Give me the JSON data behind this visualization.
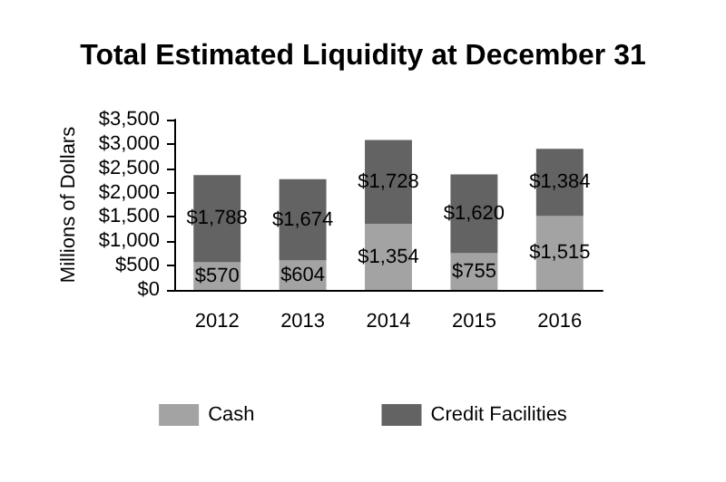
{
  "chart_data": {
    "type": "bar",
    "title": "Total Estimated Liquidity at December 31",
    "ylabel": "Millions of Dollars",
    "categories": [
      "2012",
      "2013",
      "2014",
      "2015",
      "2016"
    ],
    "stacked": true,
    "series": [
      {
        "name": "Cash",
        "color": "#a3a3a3",
        "values": [
          570,
          604,
          1354,
          755,
          1515
        ],
        "value_labels": [
          "$570",
          "$604",
          "$1,354",
          "$755",
          "$1,515"
        ]
      },
      {
        "name": "Credit Facilities",
        "color": "#636363",
        "values": [
          1788,
          1674,
          1728,
          1620,
          1384
        ],
        "value_labels": [
          "$1,788",
          "$1,674",
          "$1,728",
          "$1,620",
          "$1,384"
        ]
      }
    ],
    "ylim": [
      0,
      3500
    ],
    "yticks": [
      {
        "value": 0,
        "label": "$0"
      },
      {
        "value": 500,
        "label": "$500"
      },
      {
        "value": 1000,
        "label": "$1,000"
      },
      {
        "value": 1500,
        "label": "$1,500"
      },
      {
        "value": 2000,
        "label": "$2,000"
      },
      {
        "value": 2500,
        "label": "$2,500"
      },
      {
        "value": 3000,
        "label": "$3,000"
      },
      {
        "value": 3500,
        "label": "$3,500"
      }
    ],
    "grid": false,
    "legend": "bottom"
  }
}
